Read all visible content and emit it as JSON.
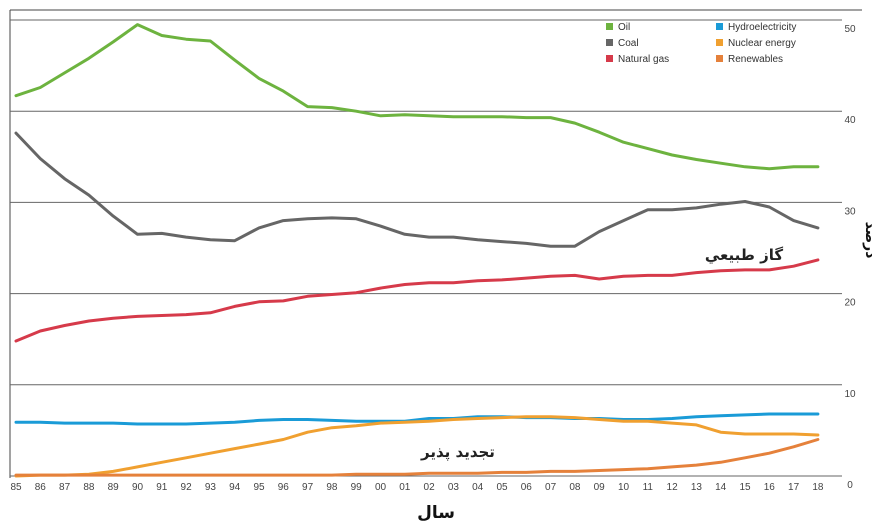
{
  "chart_data": {
    "type": "line",
    "x": [
      "85",
      "86",
      "87",
      "88",
      "89",
      "90",
      "91",
      "92",
      "93",
      "94",
      "95",
      "96",
      "97",
      "98",
      "99",
      "00",
      "01",
      "02",
      "03",
      "04",
      "05",
      "06",
      "07",
      "08",
      "09",
      "10",
      "11",
      "12",
      "13",
      "14",
      "15",
      "16",
      "17",
      "18"
    ],
    "ylim": [
      0,
      50
    ],
    "yticks": [
      "0",
      "10",
      "20",
      "30",
      "40",
      "50"
    ],
    "xlabel": "سال",
    "ylabel": "درصد",
    "grid": true,
    "legend": {
      "position": "top-right",
      "entries": [
        "Oil",
        "Coal",
        "Natural gas",
        "Hydroelectricity",
        "Nuclear energy",
        "Renewables"
      ]
    },
    "annotations": [
      {
        "text": "گاز طبيعي",
        "x": "13",
        "y": 24
      },
      {
        "text": "تجديد پذير",
        "x": "04",
        "y": 2
      }
    ],
    "series": [
      {
        "name": "Oil",
        "color": "#6db33f",
        "values": [
          41.7,
          42.6,
          44.2,
          45.8,
          47.6,
          49.5,
          48.3,
          47.9,
          47.7,
          45.6,
          43.6,
          42.2,
          40.5,
          40.4,
          40.0,
          39.5,
          39.6,
          39.5,
          39.4,
          39.4,
          39.4,
          39.3,
          39.3,
          38.7,
          37.7,
          36.6,
          35.9,
          35.2,
          34.7,
          34.3,
          33.9,
          33.7,
          33.9,
          33.9
        ]
      },
      {
        "name": "Coal",
        "color": "#666666",
        "values": [
          37.6,
          34.8,
          32.6,
          30.8,
          28.5,
          26.5,
          26.6,
          26.2,
          25.9,
          25.8,
          27.2,
          28.0,
          28.2,
          28.3,
          28.2,
          27.4,
          26.5,
          26.2,
          26.2,
          25.9,
          25.7,
          25.5,
          25.2,
          25.2,
          26.8,
          28.0,
          29.2,
          29.2,
          29.4,
          29.8,
          30.1,
          29.5,
          28.0,
          27.2
        ]
      },
      {
        "name": "Natural gas",
        "color": "#d63a4a",
        "values": [
          14.8,
          15.9,
          16.5,
          17.0,
          17.3,
          17.5,
          17.6,
          17.7,
          17.9,
          18.6,
          19.1,
          19.2,
          19.7,
          19.9,
          20.1,
          20.6,
          21.0,
          21.2,
          21.2,
          21.4,
          21.5,
          21.7,
          21.9,
          22.0,
          21.6,
          21.9,
          22.0,
          22.0,
          22.3,
          22.5,
          22.6,
          22.6,
          23.0,
          23.7
        ]
      },
      {
        "name": "Hydroelectricity",
        "color": "#1a9bd7",
        "values": [
          5.9,
          5.9,
          5.8,
          5.8,
          5.8,
          5.7,
          5.7,
          5.7,
          5.8,
          5.9,
          6.1,
          6.2,
          6.2,
          6.1,
          6.0,
          6.0,
          6.0,
          6.3,
          6.3,
          6.5,
          6.5,
          6.4,
          6.4,
          6.3,
          6.3,
          6.2,
          6.2,
          6.3,
          6.5,
          6.6,
          6.7,
          6.8,
          6.8,
          6.8
        ]
      },
      {
        "name": "Nuclear energy",
        "color": "#f0a030",
        "values": [
          0.0,
          0.1,
          0.1,
          0.2,
          0.5,
          1.0,
          1.5,
          2.0,
          2.5,
          3.0,
          3.5,
          4.0,
          4.8,
          5.3,
          5.5,
          5.8,
          5.9,
          6.0,
          6.2,
          6.3,
          6.4,
          6.5,
          6.5,
          6.4,
          6.2,
          6.0,
          6.0,
          5.8,
          5.6,
          4.8,
          4.6,
          4.6,
          4.6,
          4.5
        ]
      },
      {
        "name": "Renewables",
        "color": "#e5813b",
        "values": [
          0.1,
          0.1,
          0.1,
          0.1,
          0.1,
          0.1,
          0.1,
          0.1,
          0.1,
          0.1,
          0.1,
          0.1,
          0.1,
          0.1,
          0.2,
          0.2,
          0.2,
          0.3,
          0.3,
          0.3,
          0.4,
          0.4,
          0.5,
          0.5,
          0.6,
          0.7,
          0.8,
          1.0,
          1.2,
          1.5,
          2.0,
          2.5,
          3.2,
          4.0
        ]
      }
    ]
  }
}
